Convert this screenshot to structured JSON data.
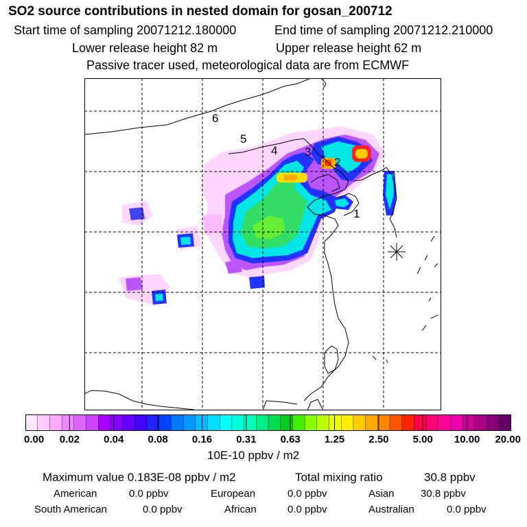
{
  "header": {
    "title": "SO2 source contributions in nested domain for gosan_200712",
    "start_label": "Start time of sampling 20071212.180000",
    "end_label": "End time of sampling 20071212.210000",
    "lower_label": "Lower release height   82 m",
    "upper_label": "Upper release height   62 m",
    "note": "Passive tracer used, meteorological data are from ECMWF"
  },
  "map": {
    "region_labels": [
      "1",
      "2",
      "3",
      "4",
      "5",
      "6"
    ]
  },
  "colorbar": {
    "tick_labels": [
      "0.00",
      "0.02",
      "0.04",
      "0.08",
      "0.16",
      "0.31",
      "0.63",
      "1.25",
      "2.50",
      "5.00",
      "10.00",
      "20.00"
    ],
    "unit": "10E-10 ppbv / m2",
    "colors": [
      "#ffe6ff",
      "#ffccff",
      "#ffaaff",
      "#ee88ff",
      "#dd66ff",
      "#cc44ff",
      "#aa00ff",
      "#8800ff",
      "#6600ff",
      "#4400ff",
      "#2222ff",
      "#0044ff",
      "#0077ff",
      "#0099ff",
      "#00bbff",
      "#00ddff",
      "#00ffff",
      "#00ffdd",
      "#00ffbb",
      "#00ee88",
      "#00dd55",
      "#00cc22",
      "#44ee00",
      "#88ff00",
      "#bbff00",
      "#eeff00",
      "#ffee00",
      "#ffcc00",
      "#ffaa00",
      "#ff8800",
      "#ff5500",
      "#ff2200",
      "#ff0044",
      "#ff0077",
      "#ff0099",
      "#ee00aa",
      "#cc0099",
      "#aa0088",
      "#880077",
      "#660066"
    ]
  },
  "summary": {
    "max_label": "Maximum value  0.183E-08 ppbv / m2",
    "total_label": "Total mixing ratio",
    "total_value": "30.8 ppbv",
    "regions": [
      {
        "name": "American",
        "value": "0.0 ppbv"
      },
      {
        "name": "European",
        "value": "0.0 ppbv"
      },
      {
        "name": "Asian",
        "value": "30.8 ppbv"
      },
      {
        "name": "South American",
        "value": "0.0 ppbv"
      },
      {
        "name": "African",
        "value": "0.0 ppbv"
      },
      {
        "name": "Australian",
        "value": "0.0 ppbv"
      }
    ]
  }
}
